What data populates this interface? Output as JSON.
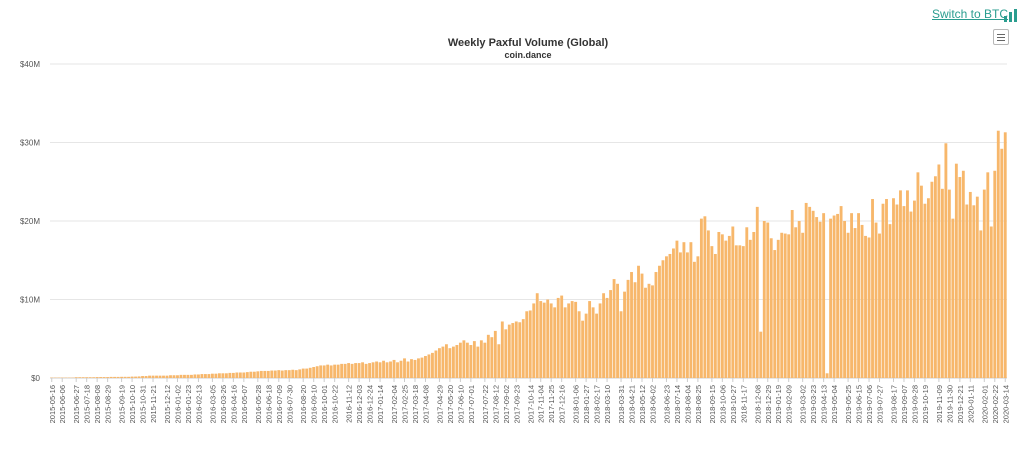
{
  "header": {
    "switch_label": "Switch to BTC",
    "switch_icon": "bar-chart-icon",
    "menu_icon": "hamburger-menu-icon"
  },
  "colors": {
    "bar": "#f7b76b",
    "grid": "#e6e6e6",
    "text": "#333333",
    "accent": "#2a9d8f"
  },
  "chart_data": {
    "type": "bar",
    "title": "Weekly Paxful Volume (Global)",
    "subtitle": "coin.dance",
    "xlabel": "",
    "ylabel": "",
    "ylim": [
      0,
      40000000
    ],
    "yticks": [
      {
        "value": 0,
        "label": "$0"
      },
      {
        "value": 10000000,
        "label": "$10M"
      },
      {
        "value": 20000000,
        "label": "$20M"
      },
      {
        "value": 30000000,
        "label": "$30M"
      },
      {
        "value": 40000000,
        "label": "$40M"
      }
    ],
    "grid": true,
    "legend": "none",
    "tick_labels": [
      "2015-05-16",
      "2015-06-06",
      "2015-06-27",
      "2015-07-18",
      "2015-08-08",
      "2015-08-29",
      "2015-09-19",
      "2015-10-10",
      "2015-10-31",
      "2015-11-21",
      "2015-12-12",
      "2016-01-02",
      "2016-01-23",
      "2016-02-13",
      "2016-03-05",
      "2016-03-26",
      "2016-04-16",
      "2016-05-07",
      "2016-05-28",
      "2016-06-18",
      "2016-07-09",
      "2016-07-30",
      "2016-08-20",
      "2016-09-10",
      "2016-10-01",
      "2016-10-22",
      "2016-11-12",
      "2016-12-03",
      "2016-12-24",
      "2017-01-14",
      "2017-02-04",
      "2017-02-25",
      "2017-03-18",
      "2017-04-08",
      "2017-04-29",
      "2017-05-20",
      "2017-06-10",
      "2017-07-01",
      "2017-07-22",
      "2017-08-12",
      "2017-09-02",
      "2017-09-23",
      "2017-10-14",
      "2017-11-04",
      "2017-11-25",
      "2017-12-16",
      "2018-01-06",
      "2018-01-27",
      "2018-02-17",
      "2018-03-10",
      "2018-03-31",
      "2018-04-21",
      "2018-05-12",
      "2018-06-02",
      "2018-06-23",
      "2018-07-14",
      "2018-08-04",
      "2018-08-25",
      "2018-09-15",
      "2018-10-06",
      "2018-10-27",
      "2018-11-17",
      "2018-12-08",
      "2018-12-29",
      "2019-01-19",
      "2019-02-09",
      "2019-03-02",
      "2019-03-23",
      "2019-04-13",
      "2019-05-04",
      "2019-05-25",
      "2019-06-15",
      "2019-07-06",
      "2019-07-27",
      "2019-08-17",
      "2019-09-07",
      "2019-09-28",
      "2019-10-19",
      "2019-11-09",
      "2019-11-30",
      "2019-12-21",
      "2020-01-11",
      "2020-02-01",
      "2020-02-22",
      "2020-03-14"
    ],
    "values": [
      0.05,
      0.05,
      0.05,
      0.05,
      0.05,
      0.05,
      0.05,
      0.1,
      0.1,
      0.1,
      0.1,
      0.1,
      0.1,
      0.12,
      0.12,
      0.12,
      0.12,
      0.14,
      0.14,
      0.14,
      0.15,
      0.15,
      0.15,
      0.18,
      0.18,
      0.2,
      0.25,
      0.25,
      0.3,
      0.3,
      0.3,
      0.3,
      0.3,
      0.3,
      0.35,
      0.35,
      0.35,
      0.4,
      0.4,
      0.4,
      0.4,
      0.45,
      0.45,
      0.5,
      0.5,
      0.5,
      0.55,
      0.55,
      0.6,
      0.6,
      0.6,
      0.65,
      0.65,
      0.7,
      0.7,
      0.7,
      0.75,
      0.8,
      0.8,
      0.85,
      0.9,
      0.9,
      0.9,
      0.95,
      0.95,
      1.0,
      0.95,
      1.0,
      1.0,
      1.05,
      1.0,
      1.1,
      1.2,
      1.2,
      1.3,
      1.4,
      1.5,
      1.6,
      1.6,
      1.7,
      1.6,
      1.7,
      1.7,
      1.8,
      1.8,
      1.9,
      1.8,
      1.9,
      1.9,
      2.0,
      1.8,
      1.9,
      2.0,
      2.1,
      2.0,
      2.2,
      2.0,
      2.1,
      2.3,
      2.0,
      2.2,
      2.5,
      2.1,
      2.4,
      2.3,
      2.5,
      2.6,
      2.8,
      3.0,
      3.2,
      3.5,
      3.8,
      4.0,
      4.3,
      3.8,
      4.0,
      4.2,
      4.5,
      4.8,
      4.5,
      4.2,
      4.7,
      4.0,
      4.8,
      4.5,
      5.5,
      5.2,
      6.0,
      4.3,
      7.2,
      6.2,
      6.8,
      7.0,
      7.2,
      7.1,
      7.5,
      8.5,
      8.6,
      9.5,
      10.8,
      9.8,
      9.6,
      10.0,
      9.5,
      9.0,
      10.2,
      10.5,
      9.0,
      9.5,
      9.8,
      9.7,
      8.5,
      7.3,
      8.2,
      9.8,
      9.0,
      8.2,
      9.5,
      10.8,
      10.2,
      11.2,
      12.6,
      12.0,
      8.5,
      11.0,
      12.5,
      13.5,
      12.2,
      14.3,
      13.3,
      11.5,
      12.0,
      11.8,
      13.5,
      14.3,
      15.0,
      15.5,
      15.8,
      16.5,
      17.5,
      16.0,
      17.3,
      16.0,
      17.3,
      14.8,
      15.5,
      20.3,
      20.6,
      18.8,
      16.8,
      15.8,
      18.6,
      18.3,
      17.5,
      18.1,
      19.3,
      16.9,
      16.9,
      16.8,
      19.2,
      17.6,
      18.6,
      21.8,
      5.9,
      20.0,
      19.8,
      17.8,
      16.3,
      17.6,
      18.5,
      18.4,
      18.3,
      21.4,
      19.2,
      20.0,
      18.5,
      22.3,
      21.8,
      21.3,
      20.5,
      19.9,
      21.0,
      0.6,
      20.3,
      20.7,
      20.9,
      21.9,
      20.0,
      18.5,
      21.0,
      19.1,
      21.0,
      19.5,
      18.1,
      17.9,
      22.8,
      19.8,
      18.4,
      22.2,
      22.8,
      19.6,
      22.9,
      22.1,
      23.9,
      21.9,
      23.9,
      21.2,
      22.6,
      26.2,
      24.5,
      22.2,
      22.9,
      25.0,
      25.7,
      27.2,
      24.1,
      29.9,
      24.0,
      20.3,
      27.3,
      25.6,
      26.4,
      22.1,
      23.7,
      22.0,
      23.1,
      18.8,
      24.0,
      26.2,
      19.3,
      26.4,
      31.5,
      29.2,
      31.3
    ]
  }
}
